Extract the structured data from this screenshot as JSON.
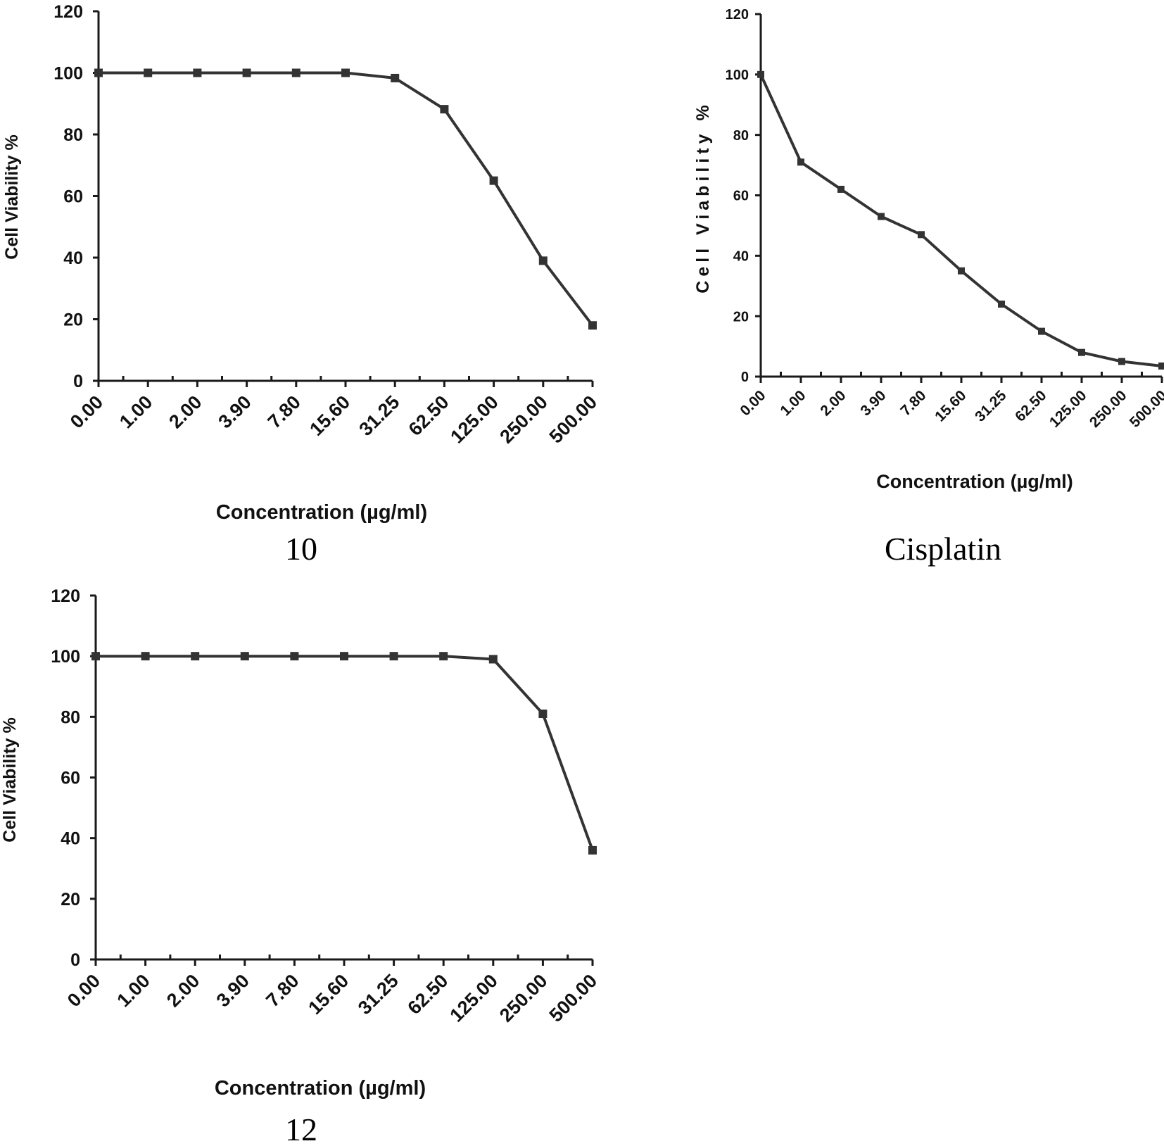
{
  "chart_data": [
    {
      "type": "line",
      "caption": "10",
      "xlabel": "Concentration (µg/ml)",
      "ylabel": "Cell Viability %",
      "ylim": [
        0,
        120
      ],
      "yticks": [
        "0",
        "20",
        "40",
        "60",
        "80",
        "100",
        "120"
      ],
      "categories": [
        "0.00",
        "1.00",
        "2.00",
        "3.90",
        "7.80",
        "15.60",
        "31.25",
        "62.50",
        "125.00",
        "250.00",
        "500.00"
      ],
      "series": [
        {
          "values": [
            100,
            100,
            100,
            100,
            100,
            100,
            98.3,
            88.2,
            65,
            39,
            18
          ]
        }
      ],
      "grid": false,
      "marker": "square",
      "line_color": "#333333"
    },
    {
      "type": "line",
      "caption": "Cisplatin",
      "xlabel": "Concentration (µg/ml)",
      "ylabel": "Cell Viability %",
      "ylim": [
        0,
        120
      ],
      "yticks": [
        "0",
        "20",
        "40",
        "60",
        "80",
        "100",
        "120"
      ],
      "categories": [
        "0.00",
        "1.00",
        "2.00",
        "3.90",
        "7.80",
        "15.60",
        "31.25",
        "62.50",
        "125.00",
        "250.00",
        "500.00"
      ],
      "series": [
        {
          "values": [
            100,
            71,
            62,
            53,
            47,
            35,
            24,
            15,
            8,
            5,
            3.5
          ]
        }
      ],
      "grid": false,
      "marker": "square",
      "line_color": "#333333"
    },
    {
      "type": "line",
      "caption": "12",
      "xlabel": "Concentration (µg/ml)",
      "ylabel": "Cell Viability %",
      "ylim": [
        0,
        120
      ],
      "yticks": [
        "0",
        "20",
        "40",
        "60",
        "80",
        "100",
        "120"
      ],
      "categories": [
        "0.00",
        "1.00",
        "2.00",
        "3.90",
        "7.80",
        "15.60",
        "31.25",
        "62.50",
        "125.00",
        "250.00",
        "500.00"
      ],
      "series": [
        {
          "values": [
            100,
            100,
            100,
            100,
            100,
            100,
            100,
            100,
            99,
            81,
            36
          ]
        }
      ],
      "grid": false,
      "marker": "square",
      "line_color": "#333333"
    }
  ]
}
